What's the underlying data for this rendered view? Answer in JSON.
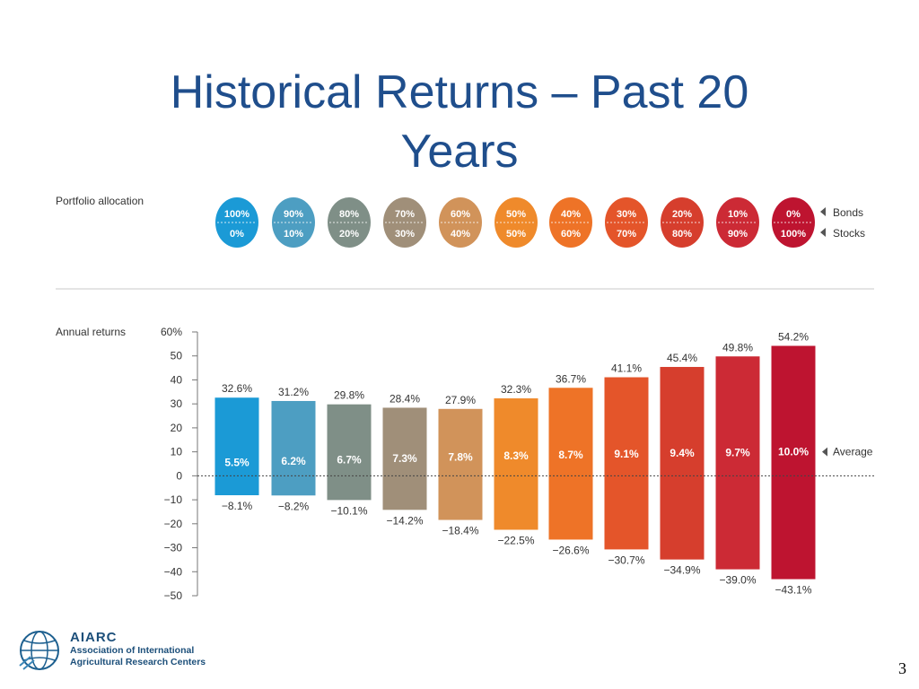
{
  "slide": {
    "title_line1": "Historical Returns – Past 20",
    "title_line2": "Years",
    "page_number": "3"
  },
  "logo": {
    "abbreviation": "AIARC",
    "line1": "Association of International",
    "line2": "Agricultural Research Centers",
    "icon": "globe-icon"
  },
  "chart_data": {
    "type": "bar",
    "portfolio_label": "Portfolio allocation",
    "annual_label": "Annual returns",
    "bonds_label": "Bonds",
    "stocks_label": "Stocks",
    "average_label": "Average",
    "bonds_alloc": [
      "100%",
      "90%",
      "80%",
      "70%",
      "60%",
      "50%",
      "40%",
      "30%",
      "20%",
      "10%",
      "0%"
    ],
    "stocks_alloc": [
      "0%",
      "10%",
      "20%",
      "30%",
      "40%",
      "50%",
      "60%",
      "70%",
      "80%",
      "90%",
      "100%"
    ],
    "highs": [
      32.6,
      31.2,
      29.8,
      28.4,
      27.9,
      32.3,
      36.7,
      41.1,
      45.4,
      49.8,
      54.2
    ],
    "lows": [
      -8.1,
      -8.2,
      -10.1,
      -14.2,
      -18.4,
      -22.5,
      -26.6,
      -30.7,
      -34.9,
      -39.0,
      -43.1
    ],
    "averages": [
      5.5,
      6.2,
      6.7,
      7.3,
      7.8,
      8.3,
      8.7,
      9.1,
      9.4,
      9.7,
      10.0
    ],
    "high_labels": [
      "32.6%",
      "31.2%",
      "29.8%",
      "28.4%",
      "27.9%",
      "32.3%",
      "36.7%",
      "41.1%",
      "45.4%",
      "49.8%",
      "54.2%"
    ],
    "low_labels": [
      "−8.1%",
      "−8.2%",
      "−10.1%",
      "−14.2%",
      "−18.4%",
      "−22.5%",
      "−26.6%",
      "−30.7%",
      "−34.9%",
      "−39.0%",
      "−43.1%"
    ],
    "avg_labels": [
      "5.5%",
      "6.2%",
      "6.7%",
      "7.3%",
      "7.8%",
      "8.3%",
      "8.7%",
      "9.1%",
      "9.4%",
      "9.7%",
      "10.0%"
    ],
    "colors": [
      "#1b9ad6",
      "#4d9ec2",
      "#7f8f87",
      "#a08f79",
      "#d1935a",
      "#ef8a2b",
      "#ee7327",
      "#e4552a",
      "#d63e2d",
      "#cc2a35",
      "#be1430"
    ],
    "y_ticks": [
      60,
      50,
      40,
      30,
      20,
      10,
      0,
      -10,
      -20,
      -30,
      -40,
      -50
    ],
    "y_tick_labels": [
      "60%",
      "50",
      "40",
      "30",
      "20",
      "10",
      "0",
      "−10",
      "−20",
      "−30",
      "−40",
      "−50"
    ],
    "ylim": [
      -50,
      60
    ],
    "grid": false
  }
}
